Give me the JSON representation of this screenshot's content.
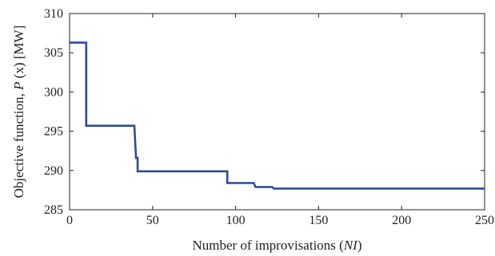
{
  "chart_data": {
    "type": "line",
    "xlabel": "Number of improvisations (",
    "xlabel_var": "NI",
    "xlabel_end": ")",
    "ylabel_pre": "Objective function, ",
    "ylabel_var": "P",
    "ylabel_post": " (x) [MW]",
    "xlim": [
      0,
      250
    ],
    "ylim": [
      285,
      310
    ],
    "x_ticks": [
      0,
      50,
      100,
      150,
      200,
      250
    ],
    "y_ticks": [
      285,
      290,
      295,
      300,
      305,
      310
    ],
    "grid": false,
    "line_color": "#2e4b9b",
    "series": [
      {
        "x": [
          0,
          10,
          10,
          11,
          39,
          40,
          40,
          41,
          41,
          42,
          95,
          95,
          111,
          112,
          112,
          122,
          123,
          250
        ],
        "y": [
          306.3,
          306.3,
          295.7,
          295.7,
          295.7,
          291.8,
          291.6,
          291.6,
          289.9,
          289.9,
          289.9,
          288.4,
          288.4,
          287.9,
          287.9,
          287.9,
          287.7,
          287.7
        ]
      }
    ]
  }
}
